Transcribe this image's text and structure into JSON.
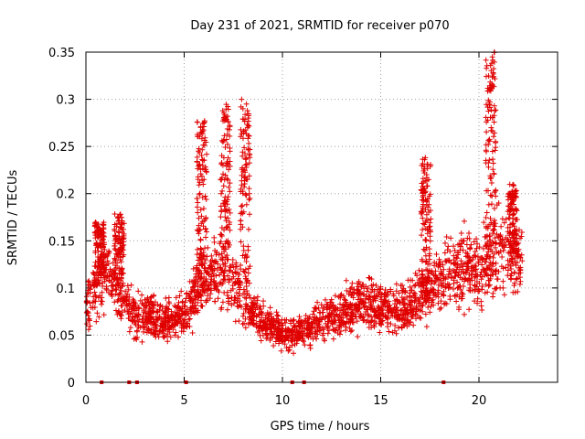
{
  "chart_data": {
    "type": "scatter",
    "title": "Day 231 of 2021, SRMTID for receiver p070",
    "xlabel": "GPS time / hours",
    "ylabel": "SRMTID / TECUs",
    "xlim": [
      0,
      24
    ],
    "ylim": [
      0,
      0.35
    ],
    "x_ticks": [
      0,
      5,
      10,
      15,
      20
    ],
    "x_tick_labels": [
      "0",
      "5",
      "10",
      "15",
      "20"
    ],
    "y_ticks": [
      0,
      0.05,
      0.1,
      0.15,
      0.2,
      0.25,
      0.3,
      0.35
    ],
    "y_tick_labels": [
      "0",
      "0.05",
      "0.1",
      "0.15",
      "0.2",
      "0.25",
      "0.3",
      "0.35"
    ],
    "grid": true,
    "marker": "plus",
    "series_color": "#e00000",
    "gap_markers_x": [
      0.8,
      2.2,
      2.6,
      5.1,
      10.5,
      11.1,
      18.2
    ],
    "profile": [
      [
        0.0,
        0.08
      ],
      [
        0.5,
        0.1
      ],
      [
        1.0,
        0.12
      ],
      [
        1.5,
        0.1
      ],
      [
        2.0,
        0.08
      ],
      [
        3.0,
        0.07
      ],
      [
        4.0,
        0.065
      ],
      [
        5.0,
        0.07
      ],
      [
        6.0,
        0.11
      ],
      [
        7.0,
        0.12
      ],
      [
        8.0,
        0.09
      ],
      [
        9.0,
        0.065
      ],
      [
        10.0,
        0.05
      ],
      [
        11.0,
        0.055
      ],
      [
        12.0,
        0.065
      ],
      [
        13.0,
        0.075
      ],
      [
        14.0,
        0.085
      ],
      [
        15.0,
        0.08
      ],
      [
        16.0,
        0.075
      ],
      [
        17.0,
        0.09
      ],
      [
        18.0,
        0.11
      ],
      [
        19.0,
        0.12
      ],
      [
        20.0,
        0.12
      ],
      [
        21.0,
        0.14
      ],
      [
        22.0,
        0.13
      ]
    ],
    "bursts": [
      {
        "x": 0.7,
        "peak": 0.17
      },
      {
        "x": 1.7,
        "peak": 0.18
      },
      {
        "x": 5.9,
        "peak": 0.28
      },
      {
        "x": 7.1,
        "peak": 0.295
      },
      {
        "x": 8.1,
        "peak": 0.3
      },
      {
        "x": 17.3,
        "peak": 0.24
      },
      {
        "x": 20.6,
        "peak": 0.35
      },
      {
        "x": 21.7,
        "peak": 0.21
      }
    ]
  }
}
